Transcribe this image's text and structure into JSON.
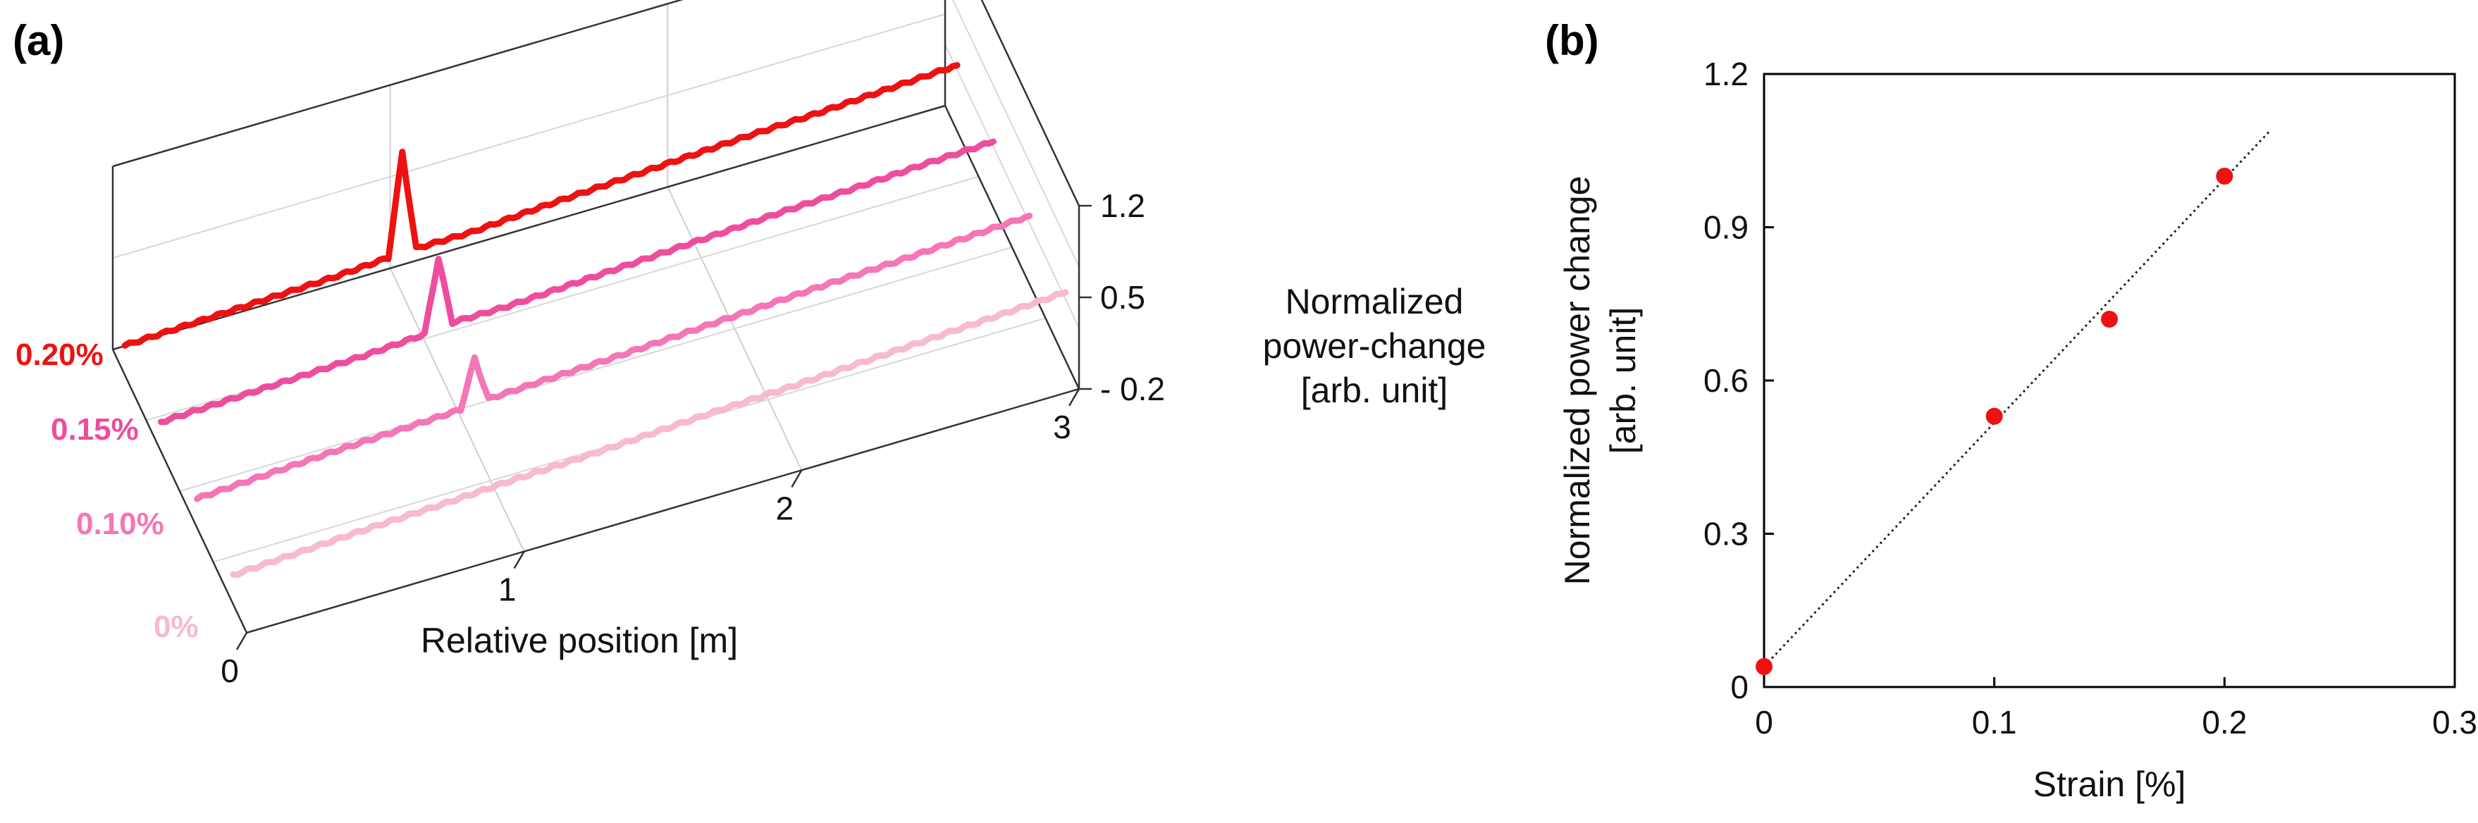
{
  "panels": {
    "a": {
      "label": "(a)"
    },
    "b": {
      "label": "(b)"
    }
  },
  "chart_data": [
    {
      "type": "line",
      "subtype": "3d-waterfall",
      "panel": "(a)",
      "xlabel": "Relative position [m]",
      "x_ticks": [
        "0",
        "1",
        "2",
        "3"
      ],
      "xlim": [
        0,
        3
      ],
      "zlabel_lines": [
        "Normalized",
        "power-change",
        "[arb. unit]"
      ],
      "z_ticks": [
        "1.2",
        "0.5",
        "- 0.2"
      ],
      "zlim": [
        -0.2,
        1.2
      ],
      "series": [
        {
          "name": "0.20%",
          "color": "#ee1111",
          "peak_position": 1.0,
          "peak_height": 1.0,
          "x": [
            0,
            0.25,
            0.5,
            0.75,
            0.95,
            1.0,
            1.05,
            1.25,
            1.5,
            1.75,
            2.0,
            2.25,
            2.5,
            2.75,
            3.0
          ],
          "y": [
            0.0,
            0.02,
            0.04,
            0.06,
            0.09,
            0.95,
            0.1,
            0.1,
            0.14,
            0.17,
            0.2,
            0.23,
            0.25,
            0.28,
            0.31
          ]
        },
        {
          "name": "0.15%",
          "color": "#ee4d9d",
          "peak_position": 1.0,
          "peak_height": 0.72,
          "x": [
            0,
            0.25,
            0.5,
            0.75,
            0.95,
            1.0,
            1.05,
            1.25,
            1.5,
            1.75,
            2.0,
            2.25,
            2.5,
            2.75,
            3.0
          ],
          "y": [
            0.0,
            0.02,
            0.04,
            0.06,
            0.09,
            0.7,
            0.12,
            0.12,
            0.15,
            0.18,
            0.21,
            0.24,
            0.26,
            0.29,
            0.31
          ]
        },
        {
          "name": "0.10%",
          "color": "#f576b6",
          "peak_position": 1.0,
          "peak_height": 0.53,
          "x": [
            0,
            0.25,
            0.5,
            0.75,
            0.95,
            1.0,
            1.05,
            1.25,
            1.5,
            1.75,
            2.0,
            2.25,
            2.5,
            2.75,
            3.0
          ],
          "y": [
            0.0,
            0.03,
            0.06,
            0.08,
            0.1,
            0.5,
            0.12,
            0.14,
            0.16,
            0.19,
            0.22,
            0.25,
            0.27,
            0.3,
            0.33
          ]
        },
        {
          "name": "0%",
          "color": "#f8b9d2",
          "peak_position": 1.0,
          "peak_height": 0.04,
          "x": [
            0,
            0.25,
            0.5,
            0.75,
            1.0,
            1.25,
            1.5,
            1.75,
            2.0,
            2.25,
            2.5,
            2.75,
            3.0
          ],
          "y": [
            0.0,
            0.03,
            0.06,
            0.08,
            0.11,
            0.13,
            0.16,
            0.19,
            0.21,
            0.24,
            0.27,
            0.3,
            0.33
          ]
        }
      ]
    },
    {
      "type": "scatter",
      "panel": "(b)",
      "xlabel": "Strain [%]",
      "ylabel_lines": [
        "Normalized power change",
        "[arb. unit]"
      ],
      "xlim": [
        0,
        0.3
      ],
      "ylim": [
        0,
        1.2
      ],
      "x_ticks": [
        "0",
        "0.1",
        "0.2",
        "0.3"
      ],
      "y_ticks": [
        "0",
        "0.3",
        "0.6",
        "0.9",
        "1.2"
      ],
      "x": [
        0,
        0.1,
        0.15,
        0.2
      ],
      "y": [
        0.04,
        0.53,
        0.72,
        1.0
      ],
      "marker_color": "#ee1111",
      "trendline": {
        "style": "dotted",
        "x": [
          0,
          0.22
        ],
        "y": [
          0.04,
          1.09
        ]
      }
    }
  ]
}
